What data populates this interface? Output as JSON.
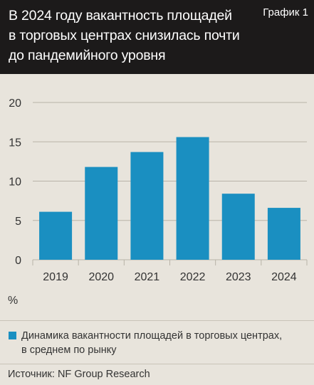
{
  "header": {
    "title": "В 2024 году вакантность площадей\nв торговых центрах снизилась почти\nдо пандемийного уровня",
    "tag": "График 1"
  },
  "chart_data": {
    "type": "bar",
    "categories": [
      "2019",
      "2020",
      "2021",
      "2022",
      "2023",
      "2024"
    ],
    "series": [
      {
        "name": "Динамика вакантности площадей в торговых центрах,\nв среднем по рынку",
        "values": [
          6.1,
          11.8,
          13.7,
          15.6,
          8.4,
          6.6
        ],
        "color": "#1a8fc1"
      }
    ],
    "yticks": [
      0,
      5,
      10,
      15,
      20
    ],
    "ylim": [
      0,
      20
    ],
    "unit": "%",
    "grid": true,
    "legend": "bottom"
  },
  "footer": {
    "source": "Источник: NF Group Research"
  }
}
